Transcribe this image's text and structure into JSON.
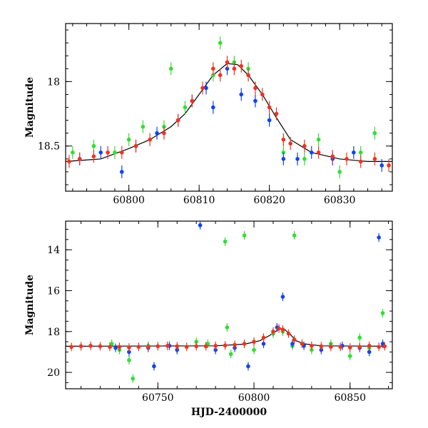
{
  "chart_data": [
    {
      "type": "scatter",
      "title": "",
      "xlabel": "",
      "ylabel": "Magnitude",
      "xlim": [
        60791,
        60837.5
      ],
      "ylim": [
        18.85,
        17.55
      ],
      "y_inverted": true,
      "xticks": [
        60800,
        60810,
        60820,
        60830
      ],
      "xtick_labels": [
        "60800",
        "60810",
        "60820",
        "60830"
      ],
      "yticks": [
        18,
        18.5
      ],
      "ytick_labels": [
        "18",
        "18.5"
      ],
      "grid": false,
      "legend": "none",
      "colors": {
        "model": "#000000",
        "green": "#33dd33",
        "blue": "#1144ee",
        "red": "#ee3322"
      },
      "series": [
        {
          "color": "green",
          "points": [
            [
              60792,
              18.55
            ],
            [
              60795,
              18.5
            ],
            [
              60798,
              18.55
            ],
            [
              60800,
              18.45
            ],
            [
              60802,
              18.35
            ],
            [
              60805,
              18.35
            ],
            [
              60806,
              17.9
            ],
            [
              60808,
              18.2
            ],
            [
              60812,
              17.95
            ],
            [
              60813,
              17.7
            ],
            [
              60815,
              17.85
            ],
            [
              60817,
              17.9
            ],
            [
              60820,
              18.3
            ],
            [
              60822,
              18.55
            ],
            [
              60825,
              18.6
            ],
            [
              60827,
              18.45
            ],
            [
              60830,
              18.7
            ],
            [
              60833,
              18.55
            ],
            [
              60835,
              18.4
            ]
          ]
        },
        {
          "color": "blue",
          "points": [
            [
              60793,
              18.6
            ],
            [
              60796,
              18.55
            ],
            [
              60799,
              18.7
            ],
            [
              60801,
              18.5
            ],
            [
              60804,
              18.4
            ],
            [
              60807,
              18.3
            ],
            [
              60809,
              18.15
            ],
            [
              60811,
              18.05
            ],
            [
              60812,
              18.2
            ],
            [
              60814,
              17.9
            ],
            [
              60816,
              18.1
            ],
            [
              60818,
              18.15
            ],
            [
              60820,
              18.3
            ],
            [
              60822,
              18.6
            ],
            [
              60824,
              18.6
            ],
            [
              60826,
              18.55
            ],
            [
              60829,
              18.6
            ],
            [
              60832,
              18.55
            ],
            [
              60836,
              18.65
            ]
          ]
        },
        {
          "color": "red",
          "points": [
            [
              60791.5,
              18.62
            ],
            [
              60793,
              18.6
            ],
            [
              60795,
              18.58
            ],
            [
              60797,
              18.55
            ],
            [
              60799,
              18.55
            ],
            [
              60801,
              18.5
            ],
            [
              60803,
              18.45
            ],
            [
              60805,
              18.4
            ],
            [
              60807,
              18.3
            ],
            [
              60809,
              18.15
            ],
            [
              60810.5,
              18.05
            ],
            [
              60812,
              17.9
            ],
            [
              60813,
              17.95
            ],
            [
              60814,
              17.85
            ],
            [
              60815,
              17.9
            ],
            [
              60816,
              17.88
            ],
            [
              60817,
              17.95
            ],
            [
              60818,
              18.05
            ],
            [
              60819,
              18.1
            ],
            [
              60820,
              18.2
            ],
            [
              60821,
              18.25
            ],
            [
              60822,
              18.45
            ],
            [
              60823,
              18.48
            ],
            [
              60825,
              18.5
            ],
            [
              60827,
              18.55
            ],
            [
              60829,
              18.58
            ],
            [
              60831,
              18.6
            ],
            [
              60833,
              18.62
            ],
            [
              60835,
              18.6
            ],
            [
              60837,
              18.65
            ]
          ]
        }
      ],
      "model_curve": [
        [
          60791,
          18.62
        ],
        [
          60796,
          18.6
        ],
        [
          60800,
          18.52
        ],
        [
          60803,
          18.45
        ],
        [
          60806,
          18.35
        ],
        [
          60808,
          18.25
        ],
        [
          60810,
          18.1
        ],
        [
          60812,
          17.95
        ],
        [
          60814,
          17.86
        ],
        [
          60815.5,
          17.87
        ],
        [
          60817,
          17.95
        ],
        [
          60819,
          18.1
        ],
        [
          60821,
          18.28
        ],
        [
          60823,
          18.45
        ],
        [
          60826,
          18.55
        ],
        [
          60830,
          18.6
        ],
        [
          60834,
          18.62
        ],
        [
          60837.5,
          18.62
        ]
      ]
    },
    {
      "type": "scatter",
      "title": "",
      "xlabel": "HJD-2400000",
      "ylabel": "Magnitude",
      "xlim": [
        60702,
        60872
      ],
      "ylim": [
        20.8,
        12.6
      ],
      "y_inverted": true,
      "xticks": [
        60750,
        60800,
        60850
      ],
      "xtick_labels": [
        "60750",
        "60800",
        "60850"
      ],
      "yticks": [
        14,
        16,
        18,
        20
      ],
      "ytick_labels": [
        "14",
        "16",
        "18",
        "20"
      ],
      "grid": false,
      "legend": "none",
      "colors": {
        "model": "#000000",
        "green": "#33dd33",
        "blue": "#1144ee",
        "red": "#ee3322"
      },
      "series": [
        {
          "color": "green",
          "points": [
            [
              60726,
              18.6
            ],
            [
              60730,
              18.9
            ],
            [
              60735,
              19.4
            ],
            [
              60737,
              20.3
            ],
            [
              60745,
              18.7
            ],
            [
              60760,
              18.9
            ],
            [
              60770,
              18.5
            ],
            [
              60776,
              18.6
            ],
            [
              60785,
              13.6
            ],
            [
              60786,
              17.8
            ],
            [
              60788,
              19.1
            ],
            [
              60795,
              13.3
            ],
            [
              60800,
              18.9
            ],
            [
              60810,
              18.1
            ],
            [
              60815,
              18.0
            ],
            [
              60820,
              18.7
            ],
            [
              60821,
              13.3
            ],
            [
              60830,
              18.9
            ],
            [
              60840,
              18.6
            ],
            [
              60850,
              19.2
            ],
            [
              60855,
              18.3
            ],
            [
              60860,
              18.8
            ],
            [
              60867,
              17.1
            ]
          ]
        },
        {
          "color": "blue",
          "points": [
            [
              60728,
              18.8
            ],
            [
              60735,
              19.0
            ],
            [
              60745,
              18.8
            ],
            [
              60748,
              19.7
            ],
            [
              60756,
              18.7
            ],
            [
              60760,
              18.9
            ],
            [
              60772,
              12.8
            ],
            [
              60780,
              18.9
            ],
            [
              60790,
              18.8
            ],
            [
              60797,
              19.7
            ],
            [
              60805,
              18.6
            ],
            [
              60812,
              17.8
            ],
            [
              60815,
              16.3
            ],
            [
              60820,
              18.6
            ],
            [
              60826,
              18.7
            ],
            [
              60835,
              18.9
            ],
            [
              60846,
              18.7
            ],
            [
              60855,
              18.8
            ],
            [
              60860,
              19.0
            ],
            [
              60865,
              13.4
            ],
            [
              60867,
              18.6
            ]
          ]
        },
        {
          "color": "red",
          "points": [
            [
              60705,
              18.75
            ],
            [
              60710,
              18.72
            ],
            [
              60715,
              18.7
            ],
            [
              60720,
              18.72
            ],
            [
              60725,
              18.75
            ],
            [
              60730,
              18.75
            ],
            [
              60735,
              18.78
            ],
            [
              60740,
              18.75
            ],
            [
              60745,
              18.75
            ],
            [
              60750,
              18.72
            ],
            [
              60755,
              18.7
            ],
            [
              60760,
              18.72
            ],
            [
              60765,
              18.75
            ],
            [
              60770,
              18.72
            ],
            [
              60775,
              18.72
            ],
            [
              60780,
              18.7
            ],
            [
              60785,
              18.68
            ],
            [
              60790,
              18.65
            ],
            [
              60795,
              18.6
            ],
            [
              60800,
              18.5
            ],
            [
              60805,
              18.3
            ],
            [
              60810,
              18.0
            ],
            [
              60813,
              17.85
            ],
            [
              60815,
              17.9
            ],
            [
              60818,
              18.1
            ],
            [
              60821,
              18.4
            ],
            [
              60825,
              18.6
            ],
            [
              60830,
              18.7
            ],
            [
              60835,
              18.72
            ],
            [
              60840,
              18.75
            ],
            [
              60845,
              18.75
            ],
            [
              60850,
              18.78
            ],
            [
              60855,
              18.75
            ],
            [
              60860,
              18.7
            ],
            [
              60865,
              18.75
            ],
            [
              60868,
              18.72
            ]
          ]
        }
      ],
      "model_curve": [
        [
          60702,
          18.72
        ],
        [
          60780,
          18.7
        ],
        [
          60795,
          18.62
        ],
        [
          60803,
          18.45
        ],
        [
          60808,
          18.2
        ],
        [
          60812,
          17.95
        ],
        [
          60814,
          17.86
        ],
        [
          60816,
          17.9
        ],
        [
          60819,
          18.15
        ],
        [
          60822,
          18.45
        ],
        [
          60826,
          18.6
        ],
        [
          60835,
          18.7
        ],
        [
          60868,
          18.72
        ]
      ]
    }
  ]
}
